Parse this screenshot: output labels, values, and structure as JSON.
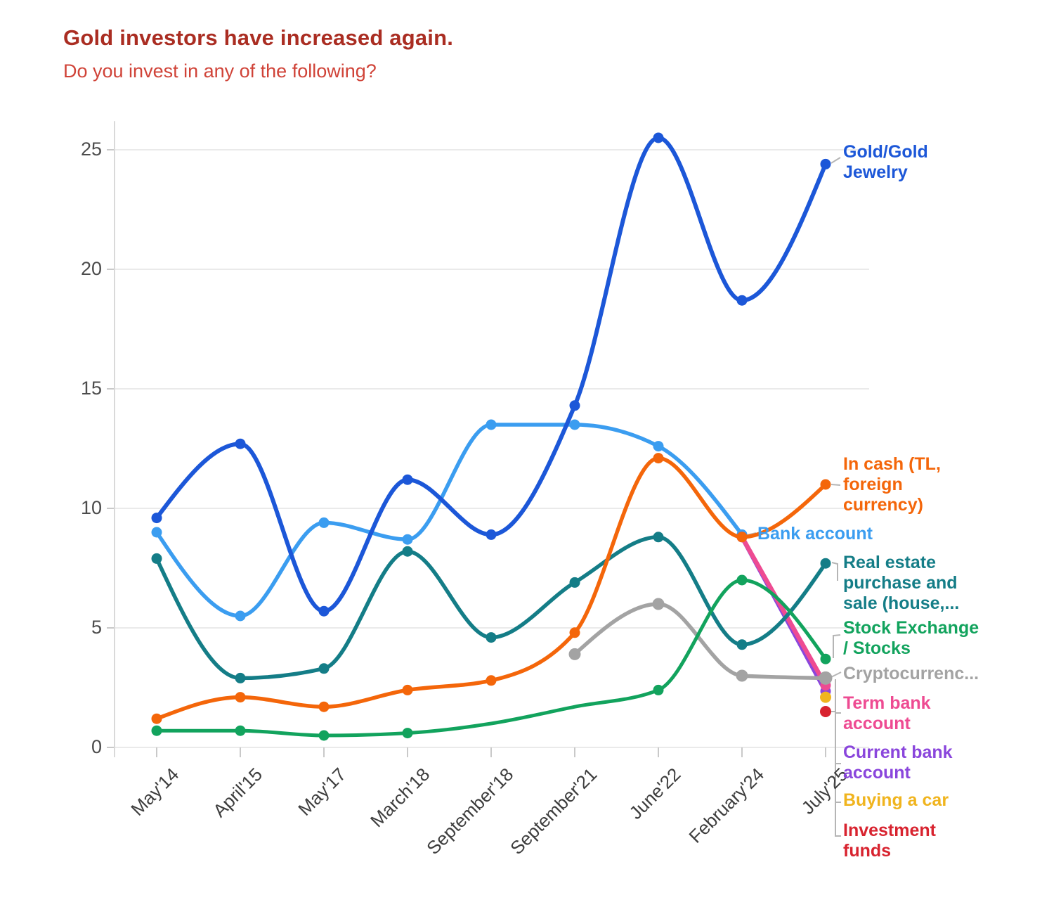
{
  "header": {
    "title": "Gold investors have increased again.",
    "subtitle": "Do you invest in any of the following?",
    "title_color": "#aa2d22",
    "subtitle_color": "#d04338"
  },
  "chart_data": {
    "type": "line",
    "title": "Gold investors have increased again.",
    "subtitle": "Do you invest in any of the following?",
    "categories": [
      "May'14",
      "April'15",
      "May'17",
      "March'18",
      "September'18",
      "September'21",
      "June'22",
      "February'24",
      "July'25"
    ],
    "ylim": [
      0,
      25
    ],
    "yticks": [
      "0",
      "5",
      "10",
      "15",
      "20",
      "25"
    ],
    "grid": true,
    "legend_position": "right-edge-labels",
    "series": [
      {
        "key": "bank-account",
        "name": "Bank account",
        "label": "Bank account",
        "color": "#3b9df0",
        "values": [
          9.0,
          5.5,
          9.4,
          8.7,
          13.5,
          13.5,
          12.6,
          8.9,
          null
        ]
      },
      {
        "key": "current-bank",
        "name": "Current bank account",
        "label": "Current bank\naccount",
        "color": "#8a46dc",
        "values": [
          null,
          null,
          null,
          null,
          null,
          null,
          null,
          8.8,
          2.35
        ]
      },
      {
        "key": "term-bank",
        "name": "Term bank account",
        "label": "Term bank\naccount",
        "color": "#ee4b92",
        "values": [
          null,
          null,
          null,
          null,
          null,
          null,
          null,
          8.8,
          2.6
        ]
      },
      {
        "key": "crypto",
        "name": "Cryptocurrenc...",
        "label": "Cryptocurrenc...",
        "color": "#a3a3a3",
        "values": [
          null,
          null,
          null,
          null,
          null,
          3.9,
          6.0,
          3.0,
          2.9
        ]
      },
      {
        "key": "real-estate",
        "name": "Real estate purchase and sale (house,...",
        "label": "Real estate\npurchase and\nsale (house,...",
        "color": "#147d87",
        "values": [
          7.9,
          2.9,
          3.3,
          8.2,
          4.6,
          6.9,
          8.8,
          4.3,
          7.7
        ]
      },
      {
        "key": "stocks",
        "name": "Stock Exchange / Stocks",
        "label": "Stock Exchange\n/ Stocks",
        "color": "#12a35d",
        "values": [
          0.7,
          0.7,
          0.5,
          0.6,
          1.0,
          1.7,
          2.4,
          7.0,
          3.7
        ],
        "no_marker_idx": [
          4,
          5
        ]
      },
      {
        "key": "cash",
        "name": "In cash (TL, foreign currency)",
        "label": "In cash (TL,\nforeign\ncurrency)",
        "color": "#f4660a",
        "values": [
          1.2,
          2.1,
          1.7,
          2.4,
          2.8,
          4.8,
          12.1,
          8.8,
          11.0
        ]
      },
      {
        "key": "gold",
        "name": "Gold/Gold Jewelry",
        "label": "Gold/Gold\nJewelry",
        "color": "#1c57d8",
        "values": [
          9.6,
          12.7,
          5.7,
          11.2,
          8.9,
          14.3,
          25.5,
          18.7,
          24.4
        ]
      },
      {
        "key": "car",
        "name": "Buying a car",
        "label": "Buying a car",
        "color": "#f0b41e",
        "values": [
          null,
          null,
          null,
          null,
          null,
          null,
          null,
          null,
          2.1
        ]
      },
      {
        "key": "funds",
        "name": "Investment funds",
        "label": "Investment\nfunds",
        "color": "#d8232f",
        "values": [
          null,
          null,
          null,
          null,
          null,
          null,
          null,
          null,
          1.5
        ]
      }
    ]
  }
}
